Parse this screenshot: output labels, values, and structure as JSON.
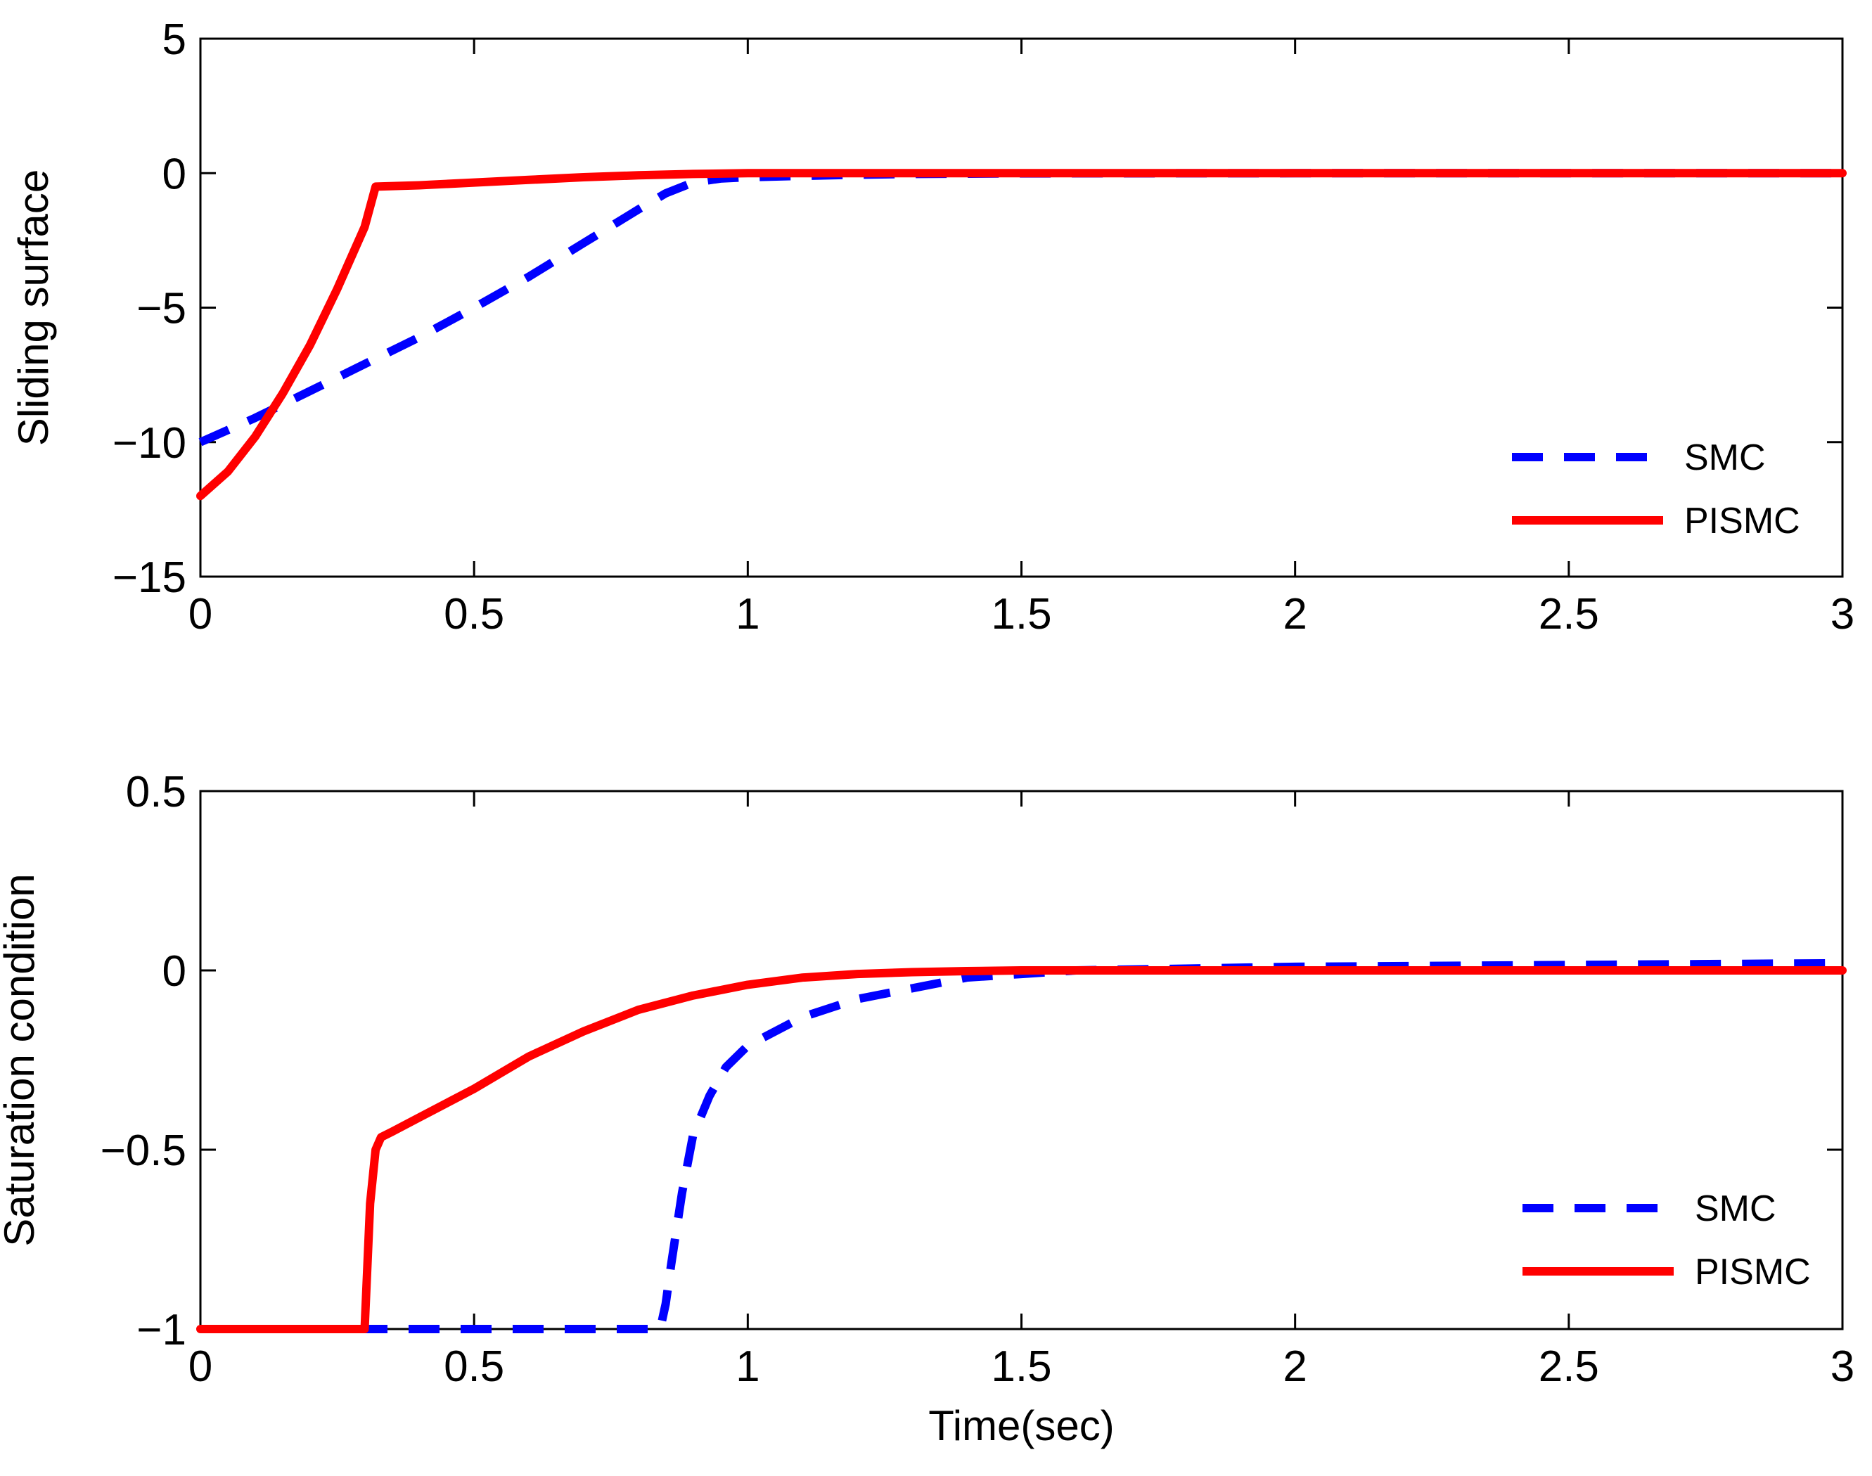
{
  "chart_data": [
    {
      "type": "line",
      "title": "",
      "xlabel": "",
      "ylabel": "Sliding surface",
      "xlim": [
        0,
        3
      ],
      "ylim": [
        -15,
        5
      ],
      "xticks": [
        0,
        0.5,
        1,
        1.5,
        2,
        2.5,
        3
      ],
      "xtick_labels": [
        "0",
        "0.5",
        "1",
        "1.5",
        "2",
        "2.5",
        "3"
      ],
      "yticks": [
        -15,
        -10,
        -5,
        0,
        5
      ],
      "ytick_labels": [
        "−15",
        "−10",
        "−5",
        "0",
        "5"
      ],
      "legend_position": "bottom-right",
      "series": [
        {
          "name": "SMC",
          "color": "#0000ff",
          "style": "dashed",
          "x": [
            0,
            0.1,
            0.2,
            0.3,
            0.4,
            0.5,
            0.6,
            0.7,
            0.8,
            0.85,
            0.9,
            0.95,
            1.0,
            1.1,
            1.2,
            1.3,
            1.5,
            2.0,
            2.5,
            3.0
          ],
          "y": [
            -10,
            -9.1,
            -8.1,
            -7.1,
            -6.1,
            -5.0,
            -3.85,
            -2.6,
            -1.35,
            -0.75,
            -0.35,
            -0.2,
            -0.15,
            -0.1,
            -0.06,
            -0.03,
            -0.01,
            0,
            0,
            0
          ]
        },
        {
          "name": "PISMC",
          "color": "#ff0000",
          "style": "solid",
          "x": [
            0,
            0.05,
            0.1,
            0.15,
            0.2,
            0.25,
            0.3,
            0.32,
            0.4,
            0.5,
            0.6,
            0.7,
            0.8,
            0.9,
            1.0,
            1.5,
            2.0,
            2.5,
            3.0
          ],
          "y": [
            -12,
            -11.1,
            -9.8,
            -8.2,
            -6.4,
            -4.3,
            -2.0,
            -0.5,
            -0.45,
            -0.35,
            -0.25,
            -0.15,
            -0.08,
            -0.03,
            0,
            0,
            0,
            0,
            0
          ]
        }
      ]
    },
    {
      "type": "line",
      "title": "",
      "xlabel": "Time(sec)",
      "ylabel": "Saturation condition",
      "xlim": [
        0,
        3
      ],
      "ylim": [
        -1,
        0.5
      ],
      "xticks": [
        0,
        0.5,
        1,
        1.5,
        2,
        2.5,
        3
      ],
      "xtick_labels": [
        "0",
        "0.5",
        "1",
        "1.5",
        "2",
        "2.5",
        "3"
      ],
      "yticks": [
        -1,
        -0.5,
        0,
        0.5
      ],
      "ytick_labels": [
        "−1",
        "−0.5",
        "0",
        "0.5"
      ],
      "legend_position": "bottom-right",
      "series": [
        {
          "name": "SMC",
          "color": "#0000ff",
          "style": "dashed",
          "x": [
            0,
            0.3,
            0.5,
            0.84,
            0.85,
            0.86,
            0.88,
            0.9,
            0.93,
            0.96,
            1.0,
            1.1,
            1.2,
            1.3,
            1.4,
            1.5,
            1.6,
            2.0,
            2.5,
            3.0
          ],
          "y": [
            -1,
            -1,
            -1,
            -1,
            -0.93,
            -0.82,
            -0.62,
            -0.46,
            -0.35,
            -0.27,
            -0.21,
            -0.13,
            -0.08,
            -0.05,
            -0.02,
            -0.01,
            0,
            0.01,
            0.015,
            0.02
          ]
        },
        {
          "name": "PISMC",
          "color": "#ff0000",
          "style": "solid",
          "x": [
            0,
            0.3,
            0.31,
            0.32,
            0.33,
            0.35,
            0.4,
            0.5,
            0.6,
            0.7,
            0.8,
            0.9,
            1.0,
            1.1,
            1.2,
            1.3,
            1.4,
            1.5,
            2.0,
            2.5,
            3.0
          ],
          "y": [
            -1,
            -1,
            -0.65,
            -0.5,
            -0.465,
            -0.45,
            -0.41,
            -0.33,
            -0.24,
            -0.17,
            -0.11,
            -0.07,
            -0.04,
            -0.02,
            -0.01,
            -0.005,
            -0.002,
            0,
            0,
            0,
            0
          ]
        }
      ]
    }
  ]
}
